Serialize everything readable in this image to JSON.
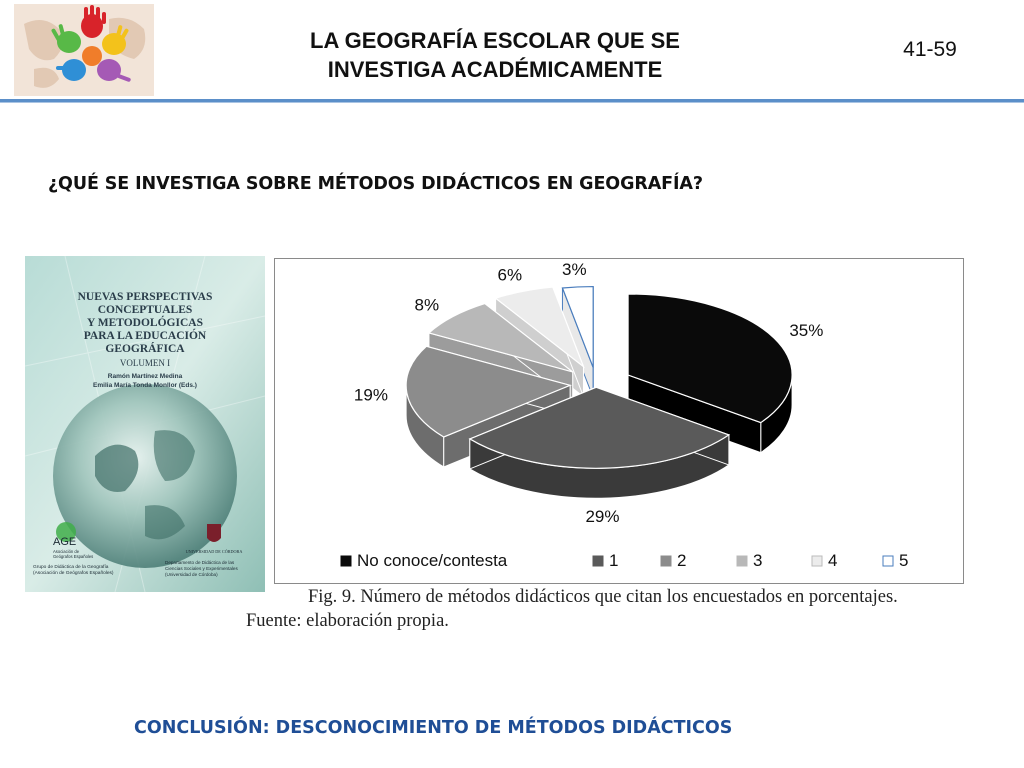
{
  "header": {
    "title_line1": "LA GEOGRAFÍA ESCOLAR QUE SE",
    "title_line2": "INVESTIGA ACADÉMICAMENTE",
    "page_number": "41-59"
  },
  "question": "¿QUÉ SE INVESTIGA SOBRE  MÉTODOS DIDÁCTICOS EN GEOGRAFÍA?",
  "book_cover": {
    "title_lines": [
      "NUEVAS PERSPECTIVAS",
      "CONCEPTUALES",
      "Y METODOLÓGICAS",
      "PARA LA EDUCACIÓN",
      "GEOGRÁFICA"
    ],
    "volume": "VOLUMEN I",
    "editors_line1": "Ramón Martínez Medina",
    "editors_line2": "Emilia María Tonda Monllor (Eds.)",
    "age_logo": "AGE",
    "age_sub1": "Asociación de",
    "age_sub2": "Geógrafos Españoles",
    "group_line1": "Grupo de Didáctica de la Geografía",
    "group_line2": "(Asociación de Geógrafos Españoles)",
    "univ_name": "UNIVERSIDAD DE CÓRDOBA",
    "dept_line1": "Departamento de Didáctica de las",
    "dept_line2": "Ciencias Sociales y Experimentales",
    "dept_line3": "(Universidad de Córdoba)"
  },
  "chart_data": {
    "type": "pie",
    "style": "3d-exploded",
    "categories": [
      "No conoce/contesta",
      "1",
      "2",
      "3",
      "4",
      "5"
    ],
    "values": [
      35,
      29,
      19,
      8,
      6,
      3
    ],
    "labels": [
      "35%",
      "29%",
      "19%",
      "8%",
      "6%",
      "3%"
    ],
    "colors": [
      "#0a0a0a",
      "#5a5a5a",
      "#8c8c8c",
      "#b8b8b8",
      "#ececec",
      "#ffffff"
    ],
    "legend_position": "bottom"
  },
  "caption": "Fig. 9. Número de métodos didácticos que citan los encuestados en porcentajes.",
  "source": "Fuente: elaboración propia.",
  "conclusion": "CONCLUSIÓN: DESCONOCIMIENTO DE MÉTODOS DIDÁCTICOS"
}
